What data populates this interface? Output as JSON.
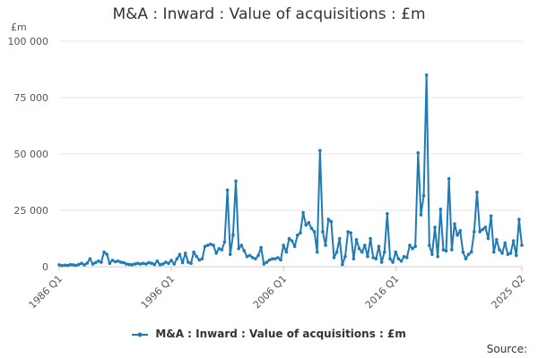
{
  "title": "M&A : Inward : Value of acquisitions : £m",
  "unit_label": "£m",
  "source_label": "Source:",
  "legend": {
    "label": "M&A : Inward : Value of acquisitions : £m",
    "color": "#1f7bb6"
  },
  "chart_data": {
    "type": "line",
    "title": "M&A : Inward : Value of acquisitions : £m",
    "xlabel": "",
    "ylabel": "£m",
    "ylim": [
      0,
      100000
    ],
    "yticks": [
      0,
      25000,
      50000,
      75000,
      100000
    ],
    "ytick_labels": [
      "0",
      "25 000",
      "50 000",
      "75 000",
      "100 000"
    ],
    "xtick_labels": [
      "1986 Q1",
      "1996 Q1",
      "2006 Q1",
      "2016 Q1",
      "2025 Q2"
    ],
    "x_start": "1986 Q1",
    "x_end": "2025 Q2",
    "grid": true,
    "series": [
      {
        "name": "M&A : Inward : Value of acquisitions : £m",
        "color": "#1f7bb6",
        "values": [
          800,
          500,
          700,
          600,
          900,
          800,
          600,
          1000,
          1500,
          800,
          1600,
          3500,
          1200,
          1800,
          2500,
          2000,
          6500,
          5500,
          1500,
          2800,
          2200,
          2500,
          2000,
          1800,
          1200,
          1000,
          900,
          1200,
          1500,
          1200,
          1500,
          1200,
          1800,
          1500,
          1000,
          2500,
          900,
          1200,
          2000,
          1500,
          2800,
          1200,
          3500,
          5500,
          1800,
          6000,
          2000,
          1500,
          6500,
          4500,
          3000,
          3500,
          9000,
          9500,
          10000,
          9500,
          6000,
          8000,
          7500,
          11000,
          34000,
          5500,
          14000,
          38000,
          8000,
          9500,
          7000,
          4500,
          5000,
          4000,
          3500,
          5000,
          8500,
          1200,
          2000,
          3000,
          3500,
          3500,
          4000,
          3000,
          9500,
          6500,
          12500,
          11500,
          9000,
          14000,
          15000,
          24000,
          18500,
          19500,
          17000,
          15500,
          6500,
          51500,
          15500,
          9500,
          21000,
          20000,
          4000,
          6500,
          12500,
          1000,
          4500,
          15500,
          15000,
          3500,
          12000,
          8000,
          6500,
          9500,
          4500,
          12500,
          4000,
          3500,
          9000,
          2000,
          6500,
          23500,
          3500,
          2000,
          6500,
          3500,
          2500,
          4500,
          4000,
          9500,
          8000,
          9000,
          50500,
          23000,
          31500,
          85000,
          9500,
          5500,
          17500,
          4500,
          25500,
          7500,
          7000,
          39000,
          7500,
          19000,
          14000,
          16000,
          6500,
          3500,
          5500,
          6500,
          15500,
          33000,
          15500,
          16500,
          17500,
          12500,
          22500,
          6500,
          12000,
          7500,
          6000,
          10500,
          5500,
          6000,
          11500,
          5000,
          21000,
          9500
        ]
      }
    ]
  }
}
